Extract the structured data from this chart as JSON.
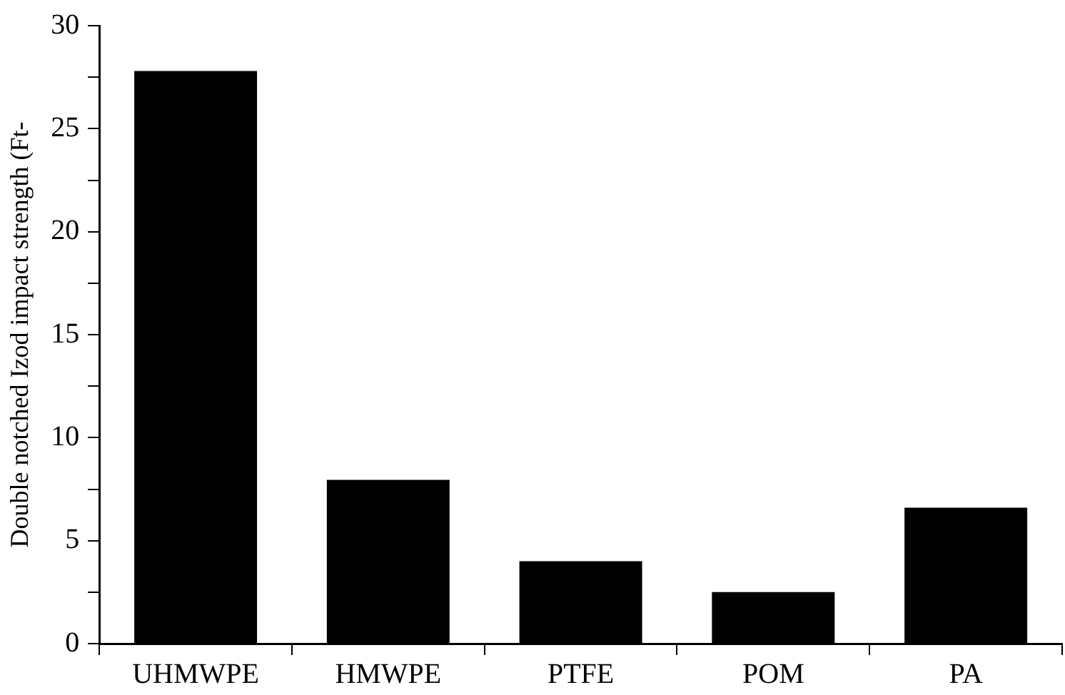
{
  "chart_data": {
    "type": "bar",
    "ylabel": "Double notched Izod impact strength (Ft-",
    "categories": [
      "UHMWPE",
      "HMWPE",
      "PTFE",
      "POM",
      "PA"
    ],
    "values": [
      27.8,
      7.95,
      4.0,
      2.5,
      6.6
    ],
    "color": "#000000",
    "ylim": [
      0,
      30
    ],
    "yticks": [
      0,
      {
        "value": 2.5,
        "label": null
      },
      5,
      {
        "value": 7.5,
        "label": null
      },
      10,
      {
        "value": 12.5,
        "label": null
      },
      15,
      {
        "value": 17.5,
        "label": null
      },
      20,
      {
        "value": 22.5,
        "label": null
      },
      25,
      {
        "value": 27.5,
        "label": null
      },
      30
    ],
    "grid": false,
    "legend": false
  }
}
